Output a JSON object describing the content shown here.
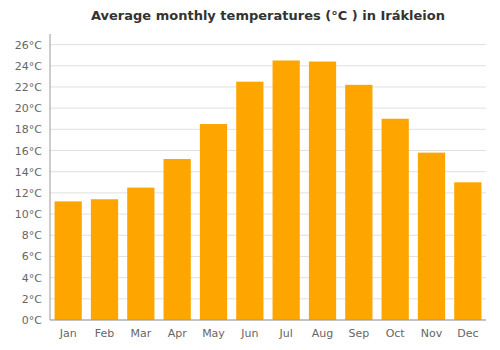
{
  "chart_data": {
    "type": "bar",
    "title": "Average monthly temperatures (°C ) in Irákleion",
    "categories": [
      "Jan",
      "Feb",
      "Mar",
      "Apr",
      "May",
      "Jun",
      "Jul",
      "Aug",
      "Sep",
      "Oct",
      "Nov",
      "Dec"
    ],
    "values": [
      11.2,
      11.4,
      12.5,
      15.2,
      18.5,
      22.5,
      24.5,
      24.4,
      22.2,
      19.0,
      15.8,
      13.0
    ],
    "color": "#FFA500",
    "ylim": [
      0,
      27
    ],
    "yticks": [
      {
        "value": 0,
        "label": "0°C"
      },
      {
        "value": 2,
        "label": "2°C"
      },
      {
        "value": 4,
        "label": "4°C"
      },
      {
        "value": 6,
        "label": "6°C"
      },
      {
        "value": 8,
        "label": "8°C"
      },
      {
        "value": 10,
        "label": "10°C"
      },
      {
        "value": 12,
        "label": "12°C"
      },
      {
        "value": 14,
        "label": "14°C"
      },
      {
        "value": 16,
        "label": "16°C"
      },
      {
        "value": 18,
        "label": "18°C"
      },
      {
        "value": 20,
        "label": "20°C"
      },
      {
        "value": 22,
        "label": "22°C"
      },
      {
        "value": 24,
        "label": "24°C"
      },
      {
        "value": 26,
        "label": "26°C"
      }
    ],
    "grid": true
  }
}
